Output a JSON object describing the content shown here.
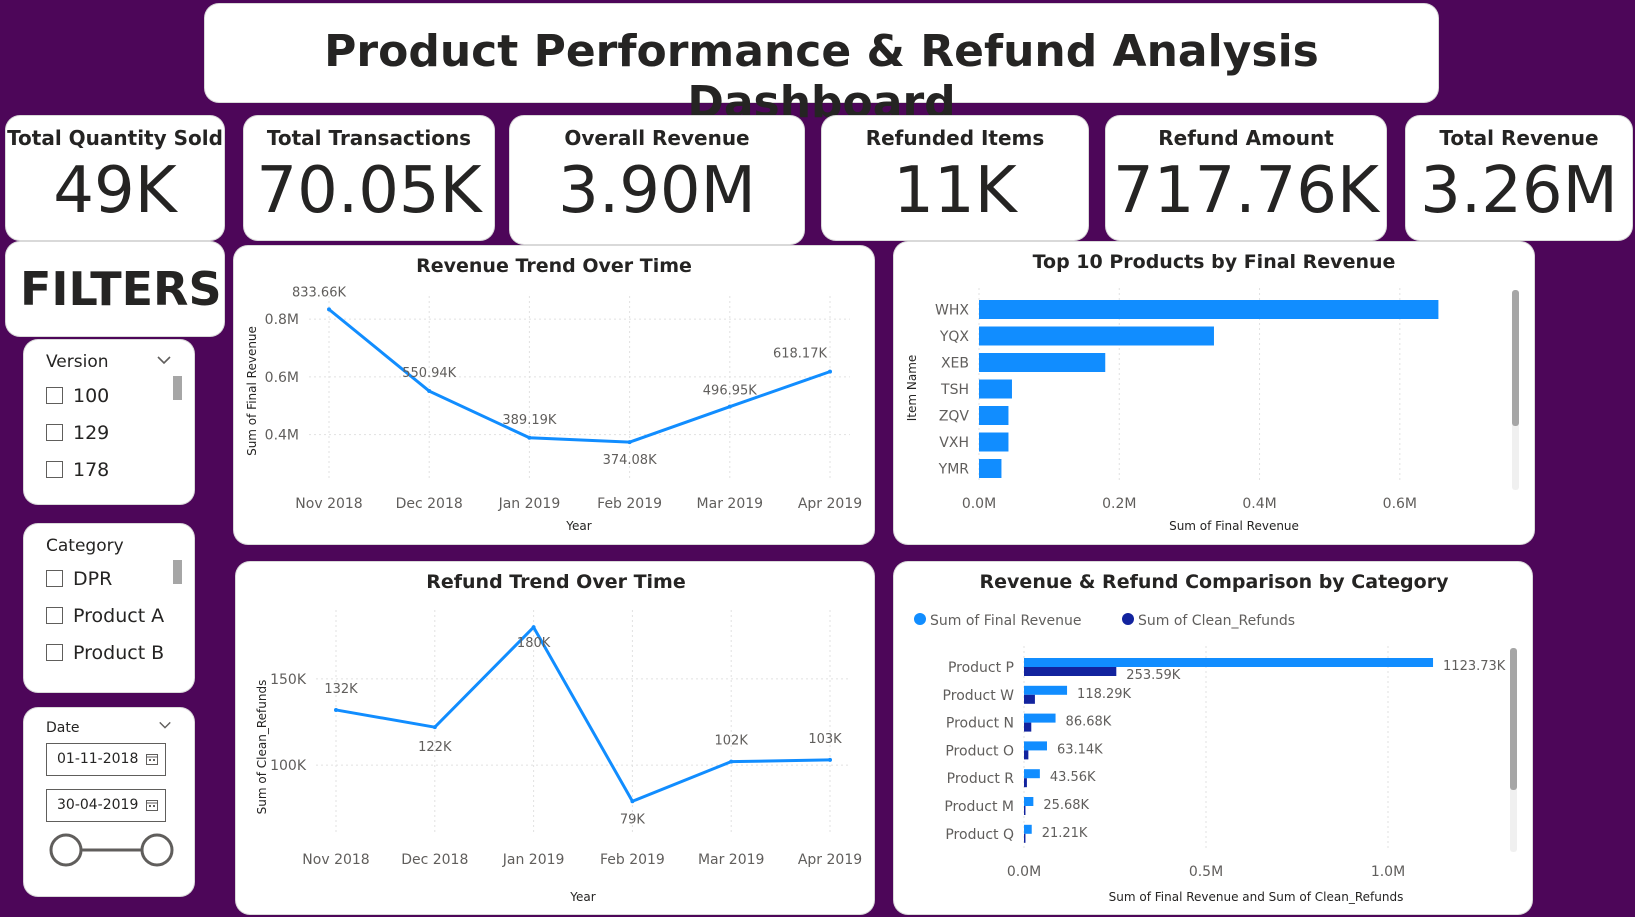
{
  "header": {
    "title": "Product Performance & Refund Analysis Dashboard"
  },
  "kpis": [
    {
      "label": "Total Quantity Sold",
      "value": "49K"
    },
    {
      "label": "Total Transactions",
      "value": "70.05K"
    },
    {
      "label": "Overall Revenue",
      "value": "3.90M"
    },
    {
      "label": "Refunded Items",
      "value": "11K"
    },
    {
      "label": "Refund Amount",
      "value": "717.76K"
    },
    {
      "label": "Total Revenue",
      "value": "3.26M"
    }
  ],
  "filters": {
    "title": "FILTERS",
    "version": {
      "label": "Version",
      "options": [
        "100",
        "129",
        "178"
      ]
    },
    "category": {
      "label": "Category",
      "options": [
        "DPR",
        "Product A",
        "Product B"
      ]
    },
    "date": {
      "label": "Date",
      "start": "01-11-2018",
      "end": "30-04-2019"
    }
  },
  "colors": {
    "background": "#4d0659",
    "series_light": "#118dff",
    "series_dark": "#12239e"
  },
  "chart_data": [
    {
      "id": "revenue_trend",
      "type": "line",
      "title": "Revenue Trend Over Time",
      "xlabel": "Year",
      "ylabel": "Sum of Final Revenue",
      "categories": [
        "Nov 2018",
        "Dec 2018",
        "Jan 2019",
        "Feb 2019",
        "Mar 2019",
        "Apr 2019"
      ],
      "values": [
        833660,
        550940,
        389190,
        374080,
        496950,
        618170
      ],
      "data_labels": [
        "833.66K",
        "550.94K",
        "389.19K",
        "374.08K",
        "496.95K",
        "618.17K"
      ],
      "yticks": [
        {
          "v": 400000,
          "label": "0.4M"
        },
        {
          "v": 600000,
          "label": "0.6M"
        },
        {
          "v": 800000,
          "label": "0.8M"
        }
      ],
      "ylim": [
        250000,
        880000
      ],
      "grid": true
    },
    {
      "id": "top_products",
      "type": "bar",
      "orientation": "horizontal",
      "title": "Top 10 Products by Final Revenue",
      "xlabel": "Sum of Final Revenue",
      "ylabel": "Item Name",
      "categories": [
        "WHX",
        "YQX",
        "XEB",
        "TSH",
        "ZQV",
        "VXH",
        "YMR"
      ],
      "values": [
        655000,
        335000,
        180000,
        47000,
        42000,
        42000,
        32000
      ],
      "xticks": [
        {
          "v": 0,
          "label": "0.0M"
        },
        {
          "v": 200000,
          "label": "0.2M"
        },
        {
          "v": 400000,
          "label": "0.4M"
        },
        {
          "v": 600000,
          "label": "0.6M"
        }
      ],
      "xlim": [
        0,
        720000
      ],
      "grid": true
    },
    {
      "id": "refund_trend",
      "type": "line",
      "title": "Refund Trend Over Time",
      "xlabel": "Year",
      "ylabel": "Sum of Clean_Refunds",
      "categories": [
        "Nov 2018",
        "Dec 2018",
        "Jan 2019",
        "Feb 2019",
        "Mar 2019",
        "Apr 2019"
      ],
      "values": [
        132000,
        122000,
        180000,
        79000,
        102000,
        103000
      ],
      "data_labels": [
        "132K",
        "122K",
        "180K",
        "79K",
        "102K",
        "103K"
      ],
      "yticks": [
        {
          "v": 100000,
          "label": "100K"
        },
        {
          "v": 150000,
          "label": "150K"
        }
      ],
      "ylim": [
        60000,
        190000
      ],
      "grid": true
    },
    {
      "id": "category_compare",
      "type": "bar",
      "orientation": "horizontal",
      "title": "Revenue & Refund Comparison by Category",
      "xlabel": "Sum of Final Revenue and Sum of Clean_Refunds",
      "categories": [
        "Product P",
        "Product W",
        "Product N",
        "Product O",
        "Product R",
        "Product M",
        "Product Q"
      ],
      "series": [
        {
          "name": "Sum of Final Revenue",
          "values": [
            1123730,
            118290,
            86680,
            63140,
            43560,
            25680,
            21210
          ],
          "data_labels": [
            "1123.73K",
            "118.29K",
            "86.68K",
            "63.14K",
            "43.56K",
            "25.68K",
            "21.21K"
          ]
        },
        {
          "name": "Sum of Clean_Refunds",
          "values": [
            253590,
            30000,
            20000,
            12000,
            8000,
            4000,
            4000
          ],
          "data_labels": [
            "253.59K",
            "",
            "",
            "",
            "",
            "",
            ""
          ]
        }
      ],
      "xticks": [
        {
          "v": 0,
          "label": "0.0M"
        },
        {
          "v": 500000,
          "label": "0.5M"
        },
        {
          "v": 1000000,
          "label": "1.0M"
        }
      ],
      "xlim": [
        0,
        1250000
      ],
      "legend": "top-left",
      "grid": true
    }
  ]
}
